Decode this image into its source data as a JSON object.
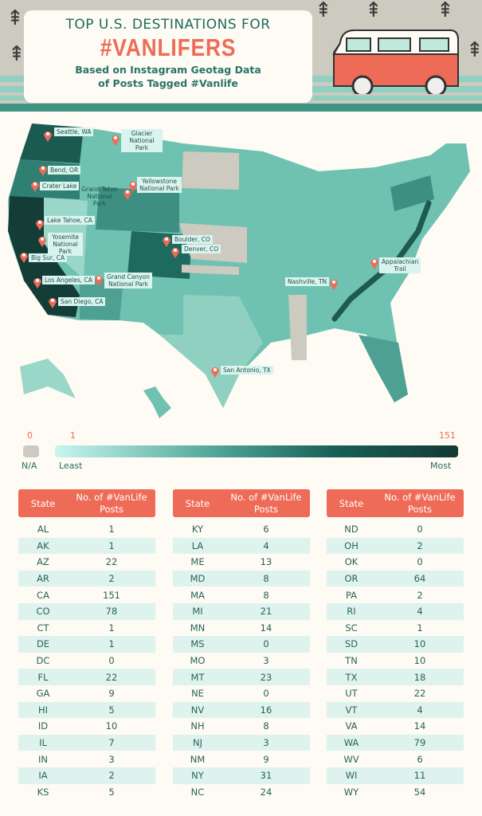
{
  "header": {
    "title_line1": "TOP U.S. DESTINATIONS FOR",
    "title_line2": "#VANLIFERS",
    "subtitle_line1": "Based on Instagram Geotag Data",
    "subtitle_line2": "of Posts Tagged #Vanlife"
  },
  "colors": {
    "accent": "#ee6b57",
    "teal_dark": "#143a35",
    "teal_light": "#c7f6ee",
    "na": "#cdcac0"
  },
  "map": {
    "pins": [
      {
        "label": "Seattle, WA"
      },
      {
        "label": "Glacier National Park"
      },
      {
        "label": "Bend, OR"
      },
      {
        "label": "Crater Lake"
      },
      {
        "label": "Grand Teton National Park"
      },
      {
        "label": "Yellowstone National Park"
      },
      {
        "label": "Lake Tahoe, CA"
      },
      {
        "label": "Yosemite National Park"
      },
      {
        "label": "Big Sur, CA"
      },
      {
        "label": "Boulder, CO"
      },
      {
        "label": "Denver, CO"
      },
      {
        "label": "Grand Canyon National Park"
      },
      {
        "label": "Los Angeles, CA"
      },
      {
        "label": "San Diego, CA"
      },
      {
        "label": "Nashville, TN"
      },
      {
        "label": "Appalachian Trail"
      },
      {
        "label": "San Antonio, TX"
      }
    ]
  },
  "legend": {
    "na_value": "0",
    "min_value": "1",
    "max_value": "151",
    "na_label": "N/A",
    "least_label": "Least",
    "most_label": "Most"
  },
  "table": {
    "header_state": "State",
    "header_posts": "No. of #VanLife Posts",
    "columns": [
      [
        [
          "AL",
          "1"
        ],
        [
          "AK",
          "1"
        ],
        [
          "AZ",
          "22"
        ],
        [
          "AR",
          "2"
        ],
        [
          "CA",
          "151"
        ],
        [
          "CO",
          "78"
        ],
        [
          "CT",
          "1"
        ],
        [
          "DE",
          "1"
        ],
        [
          "DC",
          "0"
        ],
        [
          "FL",
          "22"
        ],
        [
          "GA",
          "9"
        ],
        [
          "HI",
          "5"
        ],
        [
          "ID",
          "10"
        ],
        [
          "IL",
          "7"
        ],
        [
          "IN",
          "3"
        ],
        [
          "IA",
          "2"
        ],
        [
          "KS",
          "5"
        ]
      ],
      [
        [
          "KY",
          "6"
        ],
        [
          "LA",
          "4"
        ],
        [
          "ME",
          "13"
        ],
        [
          "MD",
          "8"
        ],
        [
          "MA",
          "8"
        ],
        [
          "MI",
          "21"
        ],
        [
          "MN",
          "14"
        ],
        [
          "MS",
          "0"
        ],
        [
          "MO",
          "3"
        ],
        [
          "MT",
          "23"
        ],
        [
          "NE",
          "0"
        ],
        [
          "NV",
          "16"
        ],
        [
          "NH",
          "8"
        ],
        [
          "NJ",
          "3"
        ],
        [
          "NM",
          "9"
        ],
        [
          "NY",
          "31"
        ],
        [
          "NC",
          "24"
        ]
      ],
      [
        [
          "ND",
          "0"
        ],
        [
          "OH",
          "2"
        ],
        [
          "OK",
          "0"
        ],
        [
          "OR",
          "64"
        ],
        [
          "PA",
          "2"
        ],
        [
          "RI",
          "4"
        ],
        [
          "SC",
          "1"
        ],
        [
          "SD",
          "10"
        ],
        [
          "TN",
          "10"
        ],
        [
          "TX",
          "18"
        ],
        [
          "UT",
          "22"
        ],
        [
          "VT",
          "4"
        ],
        [
          "VA",
          "14"
        ],
        [
          "WA",
          "79"
        ],
        [
          "WV",
          "6"
        ],
        [
          "WI",
          "11"
        ],
        [
          "WY",
          "54"
        ]
      ]
    ]
  }
}
